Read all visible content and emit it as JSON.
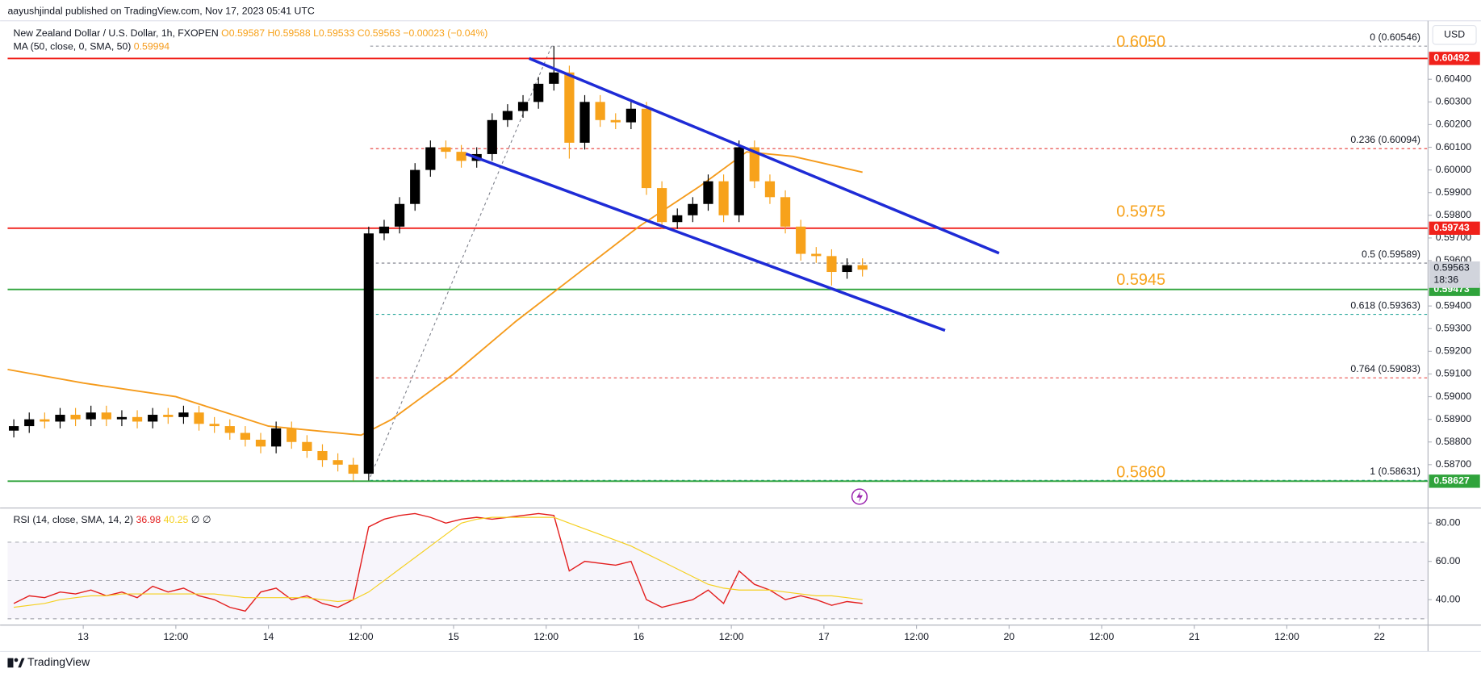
{
  "chart_data": {
    "type": "candlestick",
    "publisher": "aayushjindal published on TradingView.com, Nov 17, 2023 05:41 UTC",
    "symbol": "New Zealand Dollar / U.S. Dollar, 1h, FXOPEN",
    "ohlc_legend": [
      "O0.59587",
      "H0.59588",
      "L0.59533",
      "C0.59563",
      "−0.00023 (−0.04%)"
    ],
    "ma_legend": "MA (50, close, 0, SMA, 50)",
    "ma_value": 0.59994,
    "currency": "USD",
    "footer": "TradingView",
    "xlim": [
      -9.8,
      174.3
    ],
    "xticks": [
      {
        "value": 0,
        "label": "13"
      },
      {
        "value": 12,
        "label": "12:00"
      },
      {
        "value": 24,
        "label": "14"
      },
      {
        "value": 36,
        "label": "12:00"
      },
      {
        "value": 48,
        "label": "15"
      },
      {
        "value": 60,
        "label": "12:00"
      },
      {
        "value": 72,
        "label": "16"
      },
      {
        "value": 84,
        "label": "12:00"
      },
      {
        "value": 96,
        "label": "17"
      },
      {
        "value": 108,
        "label": "12:00"
      },
      {
        "value": 120,
        "label": "20"
      },
      {
        "value": 132,
        "label": "12:00"
      },
      {
        "value": 144,
        "label": "21"
      },
      {
        "value": 156,
        "label": "12:00"
      },
      {
        "value": 168,
        "label": "22"
      }
    ],
    "ylim": [
      0.58513,
      0.60658
    ],
    "yticks": [
      {
        "value": 0.604,
        "label": "0.60400"
      },
      {
        "value": 0.603,
        "label": "0.60300"
      },
      {
        "value": 0.602,
        "label": "0.60200"
      },
      {
        "value": 0.601,
        "label": "0.60100"
      },
      {
        "value": 0.6,
        "label": "0.60000"
      },
      {
        "value": 0.599,
        "label": "0.59900"
      },
      {
        "value": 0.598,
        "label": "0.59800"
      },
      {
        "value": 0.597,
        "label": "0.59700"
      },
      {
        "value": 0.596,
        "label": "0.59600"
      },
      {
        "value": 0.594,
        "label": "0.59400"
      },
      {
        "value": 0.593,
        "label": "0.59300"
      },
      {
        "value": 0.592,
        "label": "0.59200"
      },
      {
        "value": 0.591,
        "label": "0.59100"
      },
      {
        "value": 0.59,
        "label": "0.59000"
      },
      {
        "value": 0.589,
        "label": "0.58900"
      },
      {
        "value": 0.588,
        "label": "0.58800"
      },
      {
        "value": 0.587,
        "label": "0.58700"
      }
    ],
    "grid": false,
    "candles": {
      "up_color": "#000000",
      "down_color": "#f7a21b",
      "x": [
        -9,
        -7,
        -5,
        -3,
        -1,
        1,
        3,
        5,
        7,
        9,
        11,
        13,
        15,
        17,
        19,
        21,
        23,
        25,
        27,
        29,
        31,
        33,
        35,
        37,
        39,
        41,
        43,
        45,
        47,
        49,
        51,
        53,
        55,
        57,
        59,
        61,
        63,
        65,
        67,
        69,
        71,
        73,
        75,
        77,
        79,
        81,
        83,
        85,
        87,
        89,
        91,
        93,
        95,
        97,
        99,
        101
      ],
      "open": [
        0.5885,
        0.5887,
        0.589,
        0.5889,
        0.5892,
        0.589,
        0.5893,
        0.589,
        0.5891,
        0.5889,
        0.5892,
        0.5891,
        0.5893,
        0.5888,
        0.5887,
        0.5884,
        0.5881,
        0.5878,
        0.5886,
        0.588,
        0.5876,
        0.5872,
        0.587,
        0.5866,
        0.5972,
        0.5975,
        0.5985,
        0.6,
        0.601,
        0.6008,
        0.6004,
        0.6007,
        0.6022,
        0.6026,
        0.603,
        0.6038,
        0.6043,
        0.6012,
        0.603,
        0.6022,
        0.6021,
        0.6027,
        0.5992,
        0.5977,
        0.598,
        0.5985,
        0.5995,
        0.598,
        0.601,
        0.5995,
        0.5988,
        0.5975,
        0.5963,
        0.5962,
        0.5955,
        0.5958
      ],
      "high": [
        0.589,
        0.5893,
        0.5893,
        0.5895,
        0.5895,
        0.5896,
        0.5896,
        0.5894,
        0.5894,
        0.5895,
        0.5895,
        0.5896,
        0.5896,
        0.5891,
        0.589,
        0.5887,
        0.5884,
        0.5889,
        0.5889,
        0.5883,
        0.5879,
        0.5875,
        0.5873,
        0.5975,
        0.5978,
        0.5988,
        0.6003,
        0.6013,
        0.6013,
        0.6011,
        0.601,
        0.6025,
        0.6029,
        0.6033,
        0.6041,
        0.60546,
        0.6046,
        0.6033,
        0.6033,
        0.6025,
        0.603,
        0.603,
        0.5995,
        0.5983,
        0.5988,
        0.5998,
        0.5998,
        0.6013,
        0.6013,
        0.5998,
        0.5991,
        0.5978,
        0.5966,
        0.5965,
        0.5961,
        0.5961
      ],
      "low": [
        0.5882,
        0.5884,
        0.5886,
        0.5886,
        0.5887,
        0.5887,
        0.5887,
        0.5887,
        0.5886,
        0.5886,
        0.5888,
        0.5888,
        0.5885,
        0.5884,
        0.5881,
        0.5878,
        0.5875,
        0.5875,
        0.5877,
        0.5873,
        0.5869,
        0.5867,
        0.5863,
        0.5863,
        0.5969,
        0.5972,
        0.5982,
        0.5997,
        0.6005,
        0.6001,
        0.6001,
        0.6004,
        0.6019,
        0.6023,
        0.6027,
        0.6035,
        0.6005,
        0.6009,
        0.6019,
        0.6018,
        0.6018,
        0.5989,
        0.5974,
        0.5974,
        0.5977,
        0.5982,
        0.5977,
        0.5977,
        0.5992,
        0.5985,
        0.5972,
        0.596,
        0.5959,
        0.5949,
        0.5952,
        0.5953
      ],
      "close": [
        0.5887,
        0.589,
        0.5889,
        0.5892,
        0.589,
        0.5893,
        0.589,
        0.5891,
        0.5889,
        0.5892,
        0.5891,
        0.5893,
        0.5888,
        0.5887,
        0.5884,
        0.5881,
        0.5878,
        0.5886,
        0.588,
        0.5876,
        0.5872,
        0.587,
        0.5866,
        0.5972,
        0.5975,
        0.5985,
        0.6,
        0.601,
        0.6008,
        0.6004,
        0.6007,
        0.6022,
        0.6026,
        0.603,
        0.6038,
        0.6043,
        0.6012,
        0.603,
        0.6022,
        0.6021,
        0.6027,
        0.5992,
        0.5977,
        0.598,
        0.5985,
        0.5995,
        0.598,
        0.601,
        0.5995,
        0.5988,
        0.5975,
        0.5963,
        0.5962,
        0.5955,
        0.5958,
        0.5956
      ]
    },
    "ma": {
      "color": "#f59b1c",
      "x": [
        -9.8,
        0,
        12,
        24,
        30,
        36,
        40,
        48,
        56,
        64,
        72,
        80,
        86,
        92,
        101
      ],
      "values": [
        0.5912,
        0.5906,
        0.59,
        0.5887,
        0.5885,
        0.5883,
        0.589,
        0.591,
        0.5933,
        0.5954,
        0.5975,
        0.5993,
        0.6008,
        0.6006,
        0.5999
      ]
    },
    "trendlines": [
      {
        "color": "#1e2bd6",
        "x": [
          57.8,
          118.7
        ],
        "values": [
          0.60492,
          0.59633
        ]
      },
      {
        "color": "#1e2bd6",
        "x": [
          49.6,
          111.7
        ],
        "values": [
          0.60071,
          0.59292
        ]
      }
    ],
    "fib_anchor": {
      "x": [
        37.2,
        60.8
      ],
      "values": [
        0.58646,
        0.60554
      ]
    },
    "fib_levels": [
      {
        "price": 0.60546,
        "label": "0 (0.60546)",
        "color": "#9598a1"
      },
      {
        "price": 0.60094,
        "label": "0.236 (0.60094)",
        "color": "#e53935"
      },
      {
        "price": 0.59589,
        "label": "0.5 (0.59589)",
        "color": "#787b86"
      },
      {
        "price": 0.59363,
        "label": "0.618 (0.59363)",
        "color": "#26a69a"
      },
      {
        "price": 0.59083,
        "label": "0.764 (0.59083)",
        "color": "#e53935"
      },
      {
        "price": 0.58631,
        "label": "1 (0.58631)",
        "color": "#26a69a"
      }
    ],
    "levels": [
      {
        "price": 0.60492,
        "color": "#f0211b"
      },
      {
        "price": 0.59743,
        "color": "#f0211b"
      },
      {
        "price": 0.59473,
        "color": "#2fa33b"
      },
      {
        "price": 0.58627,
        "color": "#2fa33b"
      }
    ],
    "price_labels": [
      {
        "value": 0.605,
        "label": "0.6050"
      },
      0.5975,
      0.5945,
      {
        "value": 0.586,
        "label": "0.5860"
      }
    ],
    "price_label_color": "#f7a21b",
    "last_price": 0.59563,
    "countdown": "18:36",
    "rsi": {
      "legend": "RSI (14, close, SMA, 14, 2)",
      "legend_values": [
        36.98,
        40.25
      ],
      "legend_tail": "∅ ∅",
      "color": "#e31e1e",
      "ma_color": "#f5d020",
      "ylim": [
        27.7,
        86.9
      ],
      "yticks": [
        {
          "value": 80,
          "label": "80.00"
        },
        {
          "value": 60,
          "label": "60.00"
        },
        {
          "value": 40,
          "label": "40.00"
        }
      ],
      "bands": [
        70,
        50,
        30
      ],
      "values": [
        38,
        42,
        41,
        44,
        43,
        45,
        42,
        44,
        41,
        47,
        44,
        46,
        42,
        40,
        36,
        34,
        44,
        46,
        40,
        42,
        38,
        36,
        40,
        78,
        82,
        84,
        85,
        83,
        80,
        82,
        83,
        82,
        83,
        84,
        85,
        84,
        55,
        60,
        59,
        58,
        60,
        40,
        36,
        38,
        40,
        45,
        38,
        55,
        48,
        45,
        40,
        42,
        40,
        37,
        39,
        38
      ],
      "ma": [
        36,
        37,
        38,
        40,
        41,
        42,
        42,
        43,
        43,
        43,
        43,
        43,
        43,
        43,
        42,
        41,
        41,
        41,
        41,
        41,
        40,
        39,
        40,
        44,
        50,
        56,
        62,
        68,
        74,
        80,
        82,
        83,
        83,
        83,
        83,
        83,
        80,
        77,
        74,
        71,
        68,
        64,
        60,
        56,
        52,
        48,
        46,
        45,
        45,
        45,
        44,
        43,
        42,
        42,
        41,
        40
      ]
    }
  }
}
